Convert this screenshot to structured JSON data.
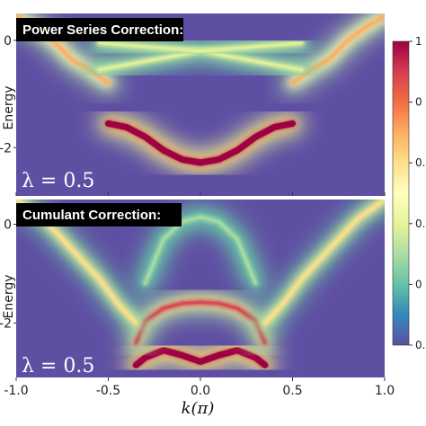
{
  "chart_data": [
    {
      "type": "heatmap",
      "title": "Power Series Correction:",
      "annotation": "λ = 0.5",
      "xlim": [
        -1.0,
        1.0
      ],
      "ylim": [
        -2.9,
        0.5
      ],
      "ylabel": "Energy",
      "yticks": [
        "0",
        "-2"
      ],
      "yticks_values": [
        0,
        -2
      ],
      "bands": [
        {
          "name": "quasiparticle",
          "intensity": 1.0,
          "points": [
            [
              -0.5,
              -1.55
            ],
            [
              -0.4,
              -1.62
            ],
            [
              -0.3,
              -1.8
            ],
            [
              -0.2,
              -2.05
            ],
            [
              -0.1,
              -2.22
            ],
            [
              0.0,
              -2.28
            ],
            [
              0.1,
              -2.22
            ],
            [
              0.2,
              -2.05
            ],
            [
              0.3,
              -1.8
            ],
            [
              0.4,
              -1.62
            ],
            [
              0.5,
              -1.55
            ]
          ]
        },
        {
          "name": "upper-left",
          "intensity": 0.7,
          "points": [
            [
              -1.0,
              0.45
            ],
            [
              -0.9,
              0.25
            ],
            [
              -0.8,
              0.0
            ],
            [
              -0.7,
              -0.35
            ],
            [
              -0.6,
              -0.55
            ],
            [
              -0.5,
              -0.8
            ]
          ]
        },
        {
          "name": "upper-right",
          "intensity": 0.7,
          "points": [
            [
              0.5,
              -0.8
            ],
            [
              0.6,
              -0.55
            ],
            [
              0.7,
              -0.35
            ],
            [
              0.8,
              0.0
            ],
            [
              0.9,
              0.25
            ],
            [
              1.0,
              0.45
            ]
          ]
        },
        {
          "name": "cross-a",
          "intensity": 0.35,
          "points": [
            [
              -0.55,
              -0.55
            ],
            [
              0.0,
              -0.2
            ],
            [
              0.55,
              -0.55
            ]
          ]
        },
        {
          "name": "cross-b",
          "intensity": 0.35,
          "points": [
            [
              -0.55,
              -0.05
            ],
            [
              0.0,
              -0.2
            ],
            [
              0.55,
              -0.05
            ]
          ]
        }
      ]
    },
    {
      "type": "heatmap",
      "title": "Cumulant Correction:",
      "annotation": "λ = 0.5",
      "xlim": [
        -1.0,
        1.0
      ],
      "ylim": [
        -3.1,
        0.5
      ],
      "ylabel": "Energy",
      "xlabel": "k(π)",
      "yticks": [
        "0",
        "-2"
      ],
      "yticks_values": [
        0,
        -2
      ],
      "xticks": [
        "-1.0",
        "-0.5",
        "0.0",
        "0.5",
        "1.0"
      ],
      "xticks_values": [
        -1.0,
        -0.5,
        0.0,
        0.5,
        1.0
      ],
      "bands": [
        {
          "name": "quasiparticle",
          "intensity": 1.0,
          "points": [
            [
              -0.35,
              -2.85
            ],
            [
              -0.3,
              -2.7
            ],
            [
              -0.2,
              -2.55
            ],
            [
              -0.1,
              -2.65
            ],
            [
              0.0,
              -2.78
            ],
            [
              0.1,
              -2.65
            ],
            [
              0.2,
              -2.55
            ],
            [
              0.3,
              -2.7
            ],
            [
              0.35,
              -2.85
            ]
          ]
        },
        {
          "name": "satellite",
          "intensity": 0.85,
          "points": [
            [
              -0.35,
              -2.4
            ],
            [
              -0.3,
              -1.95
            ],
            [
              -0.2,
              -1.7
            ],
            [
              -0.1,
              -1.6
            ],
            [
              0.0,
              -1.58
            ],
            [
              0.1,
              -1.6
            ],
            [
              0.2,
              -1.7
            ],
            [
              0.3,
              -1.95
            ],
            [
              0.35,
              -2.4
            ]
          ]
        },
        {
          "name": "upper-left",
          "intensity": 0.55,
          "points": [
            [
              -1.0,
              0.5
            ],
            [
              -0.85,
              0.1
            ],
            [
              -0.7,
              -0.5
            ],
            [
              -0.55,
              -1.1
            ],
            [
              -0.45,
              -1.6
            ],
            [
              -0.35,
              -2.0
            ]
          ]
        },
        {
          "name": "upper-right",
          "intensity": 0.55,
          "points": [
            [
              0.35,
              -2.0
            ],
            [
              0.45,
              -1.6
            ],
            [
              0.55,
              -1.1
            ],
            [
              0.7,
              -0.5
            ],
            [
              0.85,
              0.1
            ],
            [
              1.0,
              0.5
            ]
          ]
        },
        {
          "name": "arc",
          "intensity": 0.3,
          "points": [
            [
              -0.3,
              -1.2
            ],
            [
              -0.2,
              -0.3
            ],
            [
              -0.1,
              0.05
            ],
            [
              0.0,
              0.15
            ],
            [
              0.1,
              0.05
            ],
            [
              0.2,
              -0.3
            ],
            [
              0.3,
              -1.2
            ]
          ]
        }
      ]
    }
  ],
  "colorbar": {
    "colormap": "Spectral_r",
    "range": [
      0,
      1
    ],
    "tick_labels": [
      "1",
      "0",
      "0.",
      "0.",
      "0",
      "0."
    ],
    "tick_values": [
      1.0,
      0.8,
      0.6,
      0.4,
      0.2,
      0.0
    ]
  },
  "colors": {
    "background": "#5f4fa3",
    "label_box": "#000000"
  }
}
